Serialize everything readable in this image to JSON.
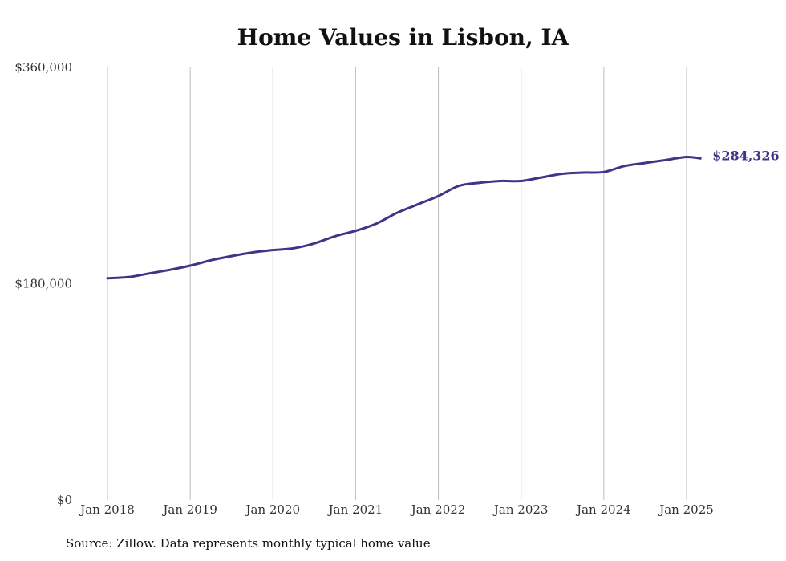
{
  "chart_data": {
    "type": "line",
    "title": "Home Values in Lisbon, IA",
    "xlabel": "",
    "ylabel": "",
    "ylim": [
      0,
      360000
    ],
    "yticks": [
      {
        "value": 0,
        "label": "$0"
      },
      {
        "value": 180000,
        "label": "$180,000"
      },
      {
        "value": 360000,
        "label": "$360,000"
      }
    ],
    "xticks": [
      {
        "year": 2018,
        "label": "Jan 2018"
      },
      {
        "year": 2019,
        "label": "Jan 2019"
      },
      {
        "year": 2020,
        "label": "Jan 2020"
      },
      {
        "year": 2021,
        "label": "Jan 2021"
      },
      {
        "year": 2022,
        "label": "Jan 2022"
      },
      {
        "year": 2023,
        "label": "Jan 2023"
      },
      {
        "year": 2024,
        "label": "Jan 2024"
      },
      {
        "year": 2025,
        "label": "Jan 2025"
      }
    ],
    "grid": "vertical",
    "line_color": "#3d3589",
    "series": [
      {
        "points": [
          [
            "2018-01",
            184500
          ],
          [
            "2018-04",
            185500
          ],
          [
            "2018-07",
            188500
          ],
          [
            "2018-10",
            191500
          ],
          [
            "2019-01",
            195000
          ],
          [
            "2019-04",
            199500
          ],
          [
            "2019-07",
            203000
          ],
          [
            "2019-10",
            206000
          ],
          [
            "2020-01",
            208000
          ],
          [
            "2020-04",
            209500
          ],
          [
            "2020-07",
            213500
          ],
          [
            "2020-10",
            219500
          ],
          [
            "2021-01",
            224000
          ],
          [
            "2021-04",
            230000
          ],
          [
            "2021-07",
            239000
          ],
          [
            "2021-10",
            246000
          ],
          [
            "2022-01",
            253000
          ],
          [
            "2022-04",
            261500
          ],
          [
            "2022-07",
            264000
          ],
          [
            "2022-10",
            265500
          ],
          [
            "2023-01",
            265500
          ],
          [
            "2023-04",
            268500
          ],
          [
            "2023-07",
            271500
          ],
          [
            "2023-10",
            272500
          ],
          [
            "2024-01",
            273000
          ],
          [
            "2024-04",
            278000
          ],
          [
            "2024-07",
            280500
          ],
          [
            "2024-10",
            283000
          ],
          [
            "2025-01",
            285500
          ],
          [
            "2025-03",
            284326
          ]
        ]
      }
    ],
    "end_label": "$284,326",
    "source": "Source: Zillow. Data represents monthly typical home value"
  }
}
